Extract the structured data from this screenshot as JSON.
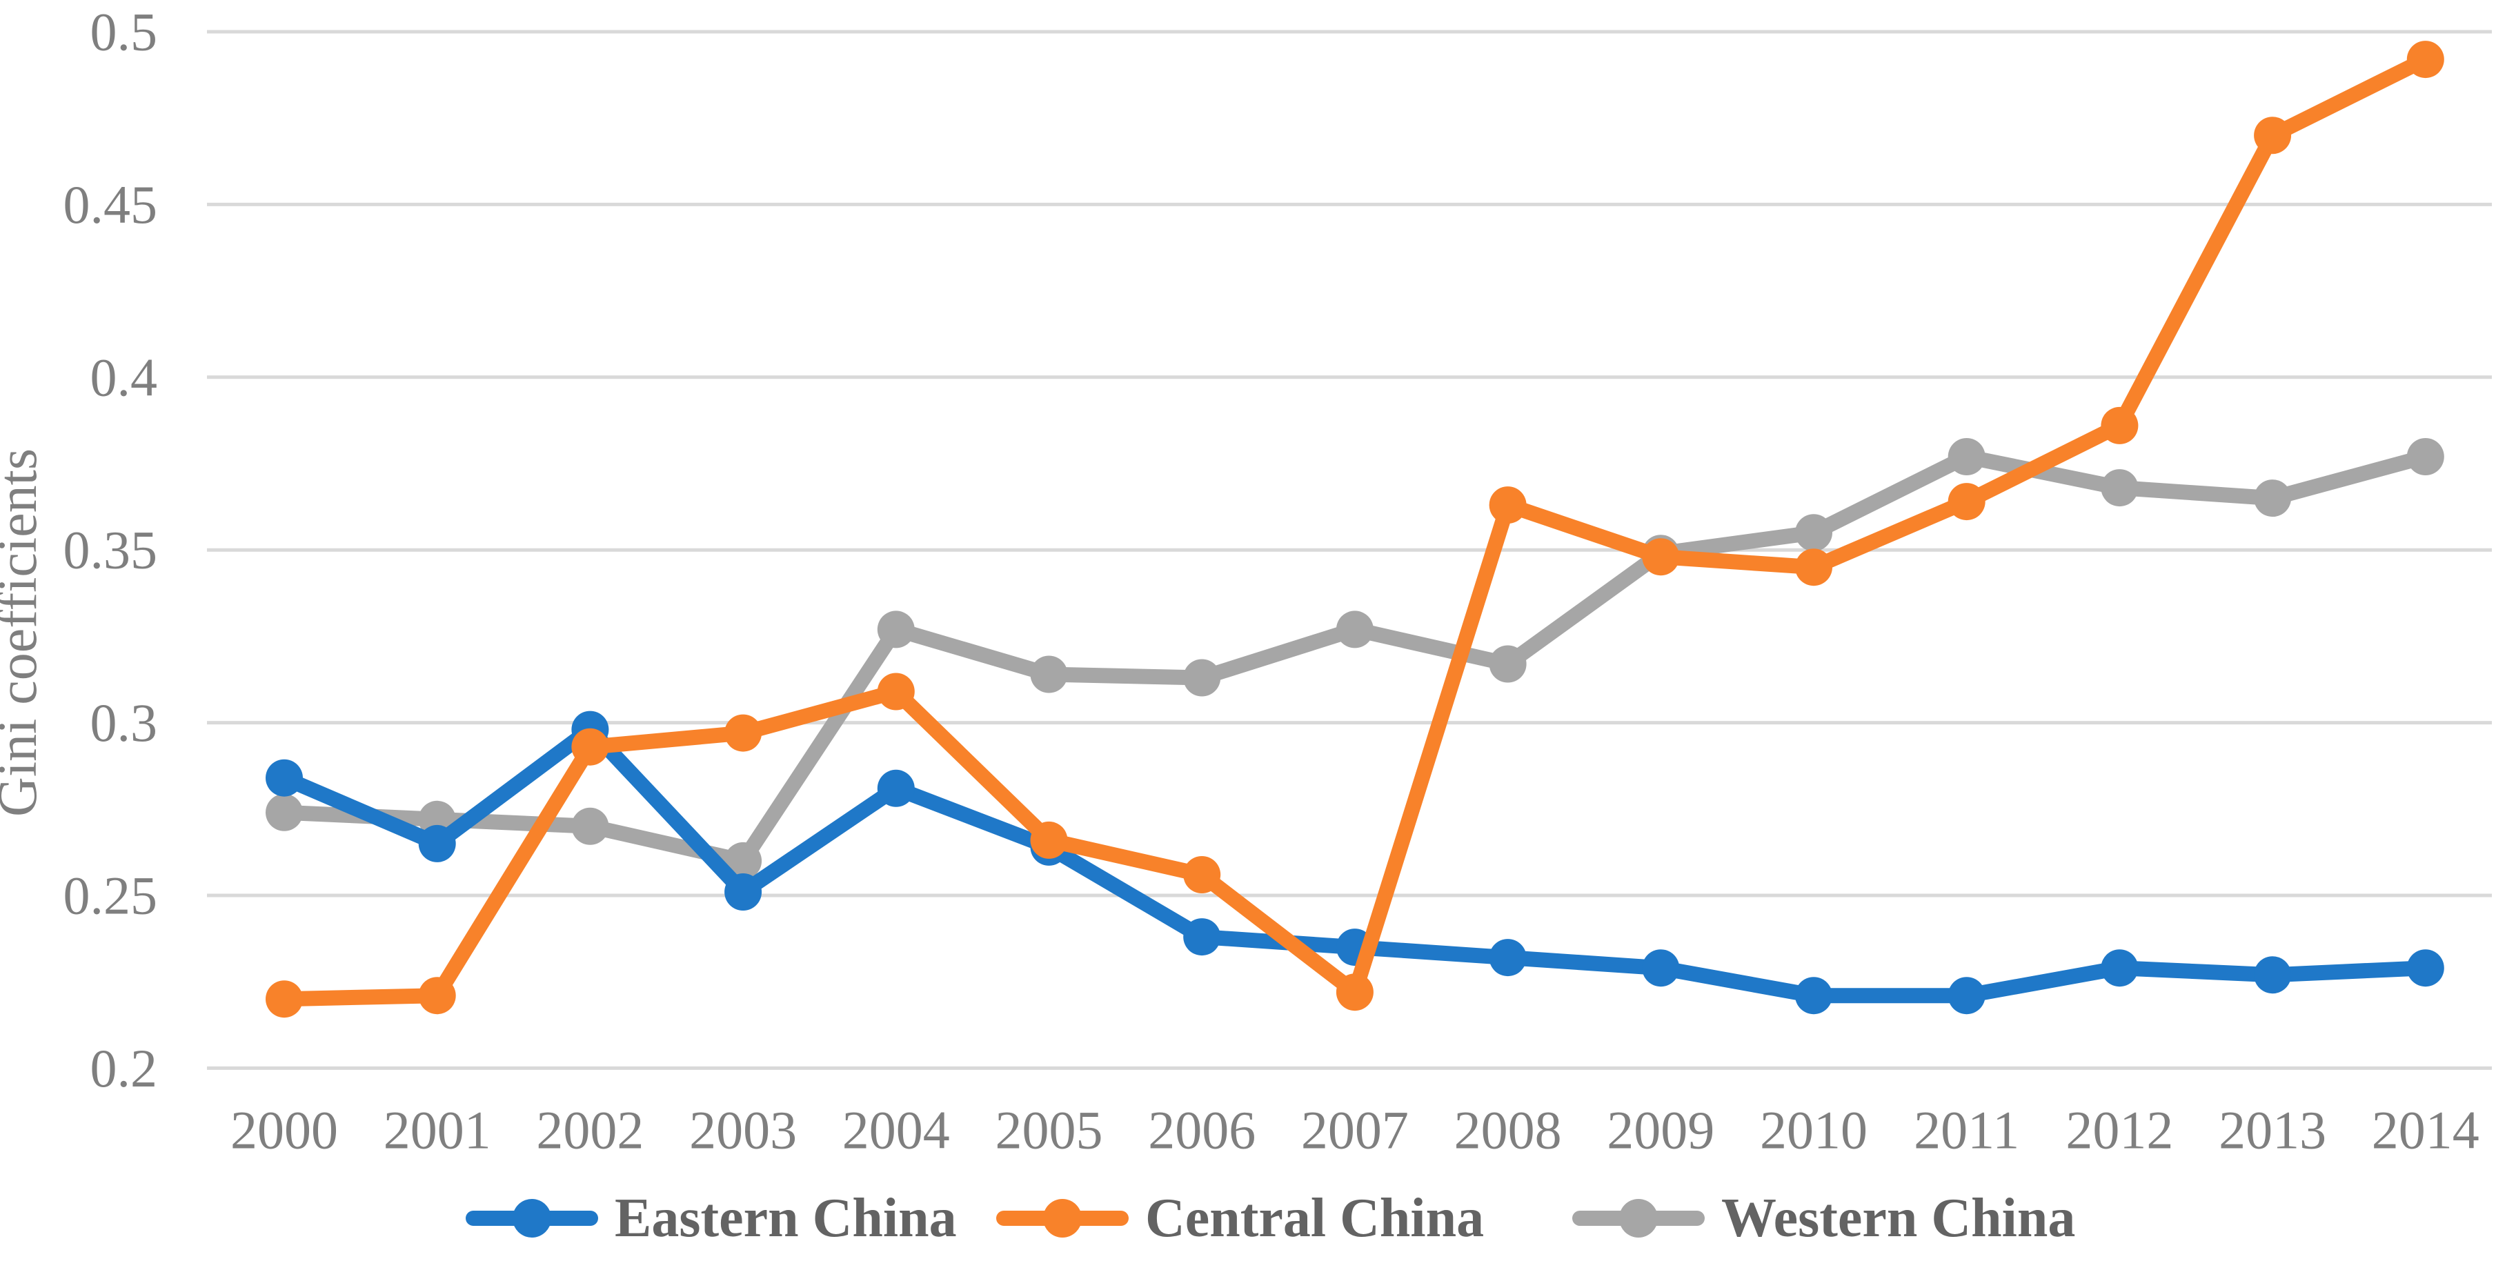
{
  "chart_data": {
    "type": "line",
    "title": "",
    "xlabel": "",
    "ylabel": "Gini coefficients",
    "categories": [
      "2000",
      "2001",
      "2002",
      "2003",
      "2004",
      "2005",
      "2006",
      "2007",
      "2008",
      "2009",
      "2010",
      "2011",
      "2012",
      "2013",
      "2014"
    ],
    "y_ticks": [
      "0.2",
      "0.25",
      "0.3",
      "0.35",
      "0.4",
      "0.45",
      "0.5"
    ],
    "y_tick_values": [
      0.2,
      0.25,
      0.3,
      0.35,
      0.4,
      0.45,
      0.5
    ],
    "ylim": [
      0.2,
      0.5
    ],
    "grid": "horizontal-only",
    "legend_position": "bottom",
    "colors": {
      "background": "#FFFFFF",
      "gridline": "#D9D9D9",
      "tick_text": "#7F7F7F",
      "axis_title_text": "#7F7F7F",
      "legend_text": "#636363",
      "eastern_blue": "#1F78C8",
      "central_orange": "#F8822A",
      "western_gray": "#A6A6A6"
    },
    "series": [
      {
        "name": "Eastern China",
        "color": "#1F78C8",
        "values": [
          0.284,
          0.265,
          0.298,
          0.251,
          0.281,
          0.264,
          0.238,
          0.235,
          0.232,
          0.229,
          0.221,
          0.221,
          0.229,
          0.227,
          0.229
        ]
      },
      {
        "name": "Central China",
        "color": "#F8822A",
        "values": [
          0.22,
          0.221,
          0.293,
          0.297,
          0.309,
          0.266,
          0.256,
          0.222,
          0.363,
          0.348,
          0.345,
          0.364,
          0.386,
          0.47,
          0.492
        ]
      },
      {
        "name": "Western China",
        "color": "#A6A6A6",
        "values": [
          0.274,
          0.272,
          0.27,
          0.26,
          0.327,
          0.314,
          0.313,
          0.327,
          0.317,
          0.349,
          0.355,
          0.377,
          0.368,
          0.365,
          0.377
        ]
      }
    ]
  }
}
